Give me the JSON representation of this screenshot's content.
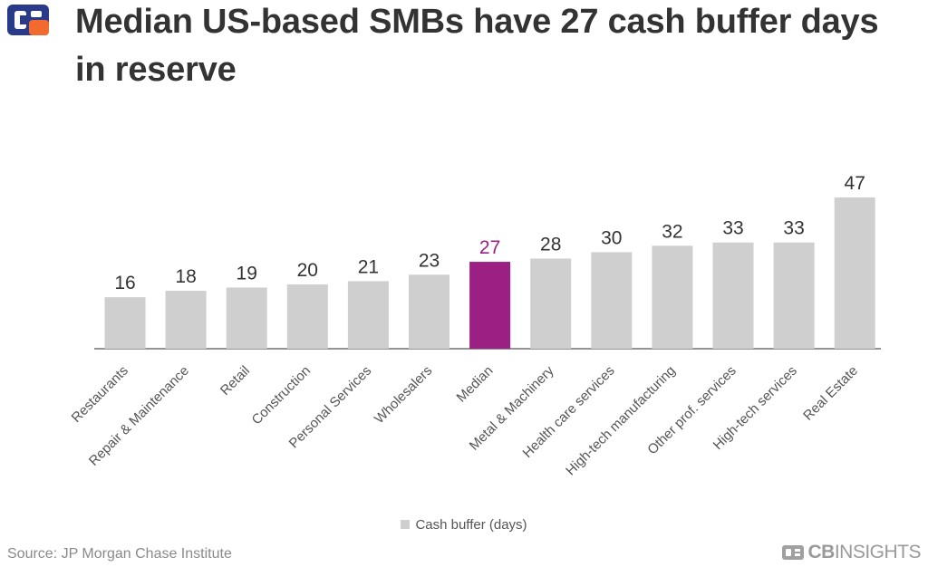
{
  "header": {
    "title": "Median US-based SMBs have 27 cash buffer days in reserve",
    "logo_icon": "cb-insights-logo-icon"
  },
  "legend": {
    "label": "Cash buffer (days)"
  },
  "footer": {
    "source": "Source: JP Morgan Chase Institute",
    "brand_bold": "CB",
    "brand_rest": "INSIGHTS"
  },
  "colors": {
    "bar": "#d0cfcf",
    "highlight": "#9c1f84",
    "label": "#333333",
    "axis_label": "#555555"
  },
  "chart_data": {
    "type": "bar",
    "title": "Median US-based SMBs have 27 cash buffer days in reserve",
    "xlabel": "",
    "ylabel": "",
    "ylim": [
      0,
      47
    ],
    "grid": false,
    "legend_position": "bottom",
    "highlight_category": "Median",
    "categories": [
      "Restaurants",
      "Repair & Maintenance",
      "Retail",
      "Construction",
      "Personal Services",
      "Wholesalers",
      "Median",
      "Metal & Machinery",
      "Health care services",
      "High-tech manufacturing",
      "Other prof. services",
      "High-tech services",
      "Real Estate"
    ],
    "series": [
      {
        "name": "Cash buffer (days)",
        "values": [
          16,
          18,
          19,
          20,
          21,
          23,
          27,
          28,
          30,
          32,
          33,
          33,
          47
        ]
      }
    ]
  }
}
